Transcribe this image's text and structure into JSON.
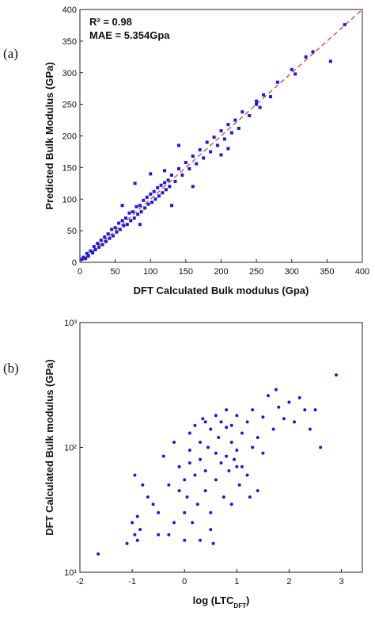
{
  "chart_data": [
    {
      "type": "scatter",
      "panel_label": "(a)",
      "xlabel": [
        "DFT Calculated Bulk modulus (Gpa)"
      ],
      "ylabel": "Predicted Bulk Modulus (GPa)",
      "annotations": [
        "R² = 0.98",
        "MAE = 5.354Gpa"
      ],
      "identity_line": true,
      "identity_color": "#e8453c",
      "marker": "square",
      "yscale": "linear",
      "xlim": [
        0,
        400
      ],
      "ylim": [
        0,
        400
      ],
      "xticks": [
        0,
        50,
        100,
        150,
        200,
        250,
        300,
        350,
        400
      ],
      "yticks": [
        0,
        50,
        100,
        150,
        200,
        250,
        300,
        350,
        400
      ],
      "series": [
        {
          "color": "#1a1ae6",
          "x": [
            3,
            5,
            8,
            10,
            12,
            15,
            18,
            20,
            22,
            25,
            27,
            30,
            32,
            35,
            37,
            40,
            42,
            45,
            47,
            50,
            52,
            55,
            57,
            60,
            62,
            65,
            67,
            70,
            72,
            75,
            77,
            80,
            82,
            85,
            87,
            90,
            92,
            95,
            97,
            100,
            102,
            105,
            107,
            110,
            112,
            115,
            117,
            120,
            122,
            125,
            127,
            130,
            135,
            140,
            145,
            150,
            155,
            160,
            165,
            170,
            175,
            180,
            185,
            190,
            195,
            200,
            205,
            210,
            215,
            220,
            225,
            230,
            240,
            250,
            255,
            260,
            270,
            280,
            300,
            305,
            320,
            330,
            355,
            375,
            78,
            130,
            100,
            160,
            140,
            200,
            250,
            210,
            120,
            60,
            85
          ],
          "y": [
            5,
            8,
            6,
            14,
            10,
            18,
            15,
            25,
            20,
            30,
            24,
            35,
            28,
            40,
            33,
            45,
            38,
            52,
            42,
            55,
            48,
            62,
            52,
            66,
            58,
            70,
            60,
            78,
            66,
            80,
            70,
            88,
            76,
            90,
            80,
            98,
            86,
            103,
            92,
            108,
            95,
            112,
            100,
            118,
            105,
            122,
            110,
            126,
            115,
            130,
            120,
            138,
            128,
            148,
            138,
            158,
            148,
            168,
            156,
            178,
            165,
            190,
            175,
            198,
            185,
            208,
            195,
            218,
            205,
            225,
            212,
            238,
            232,
            255,
            245,
            265,
            262,
            285,
            305,
            298,
            325,
            333,
            318,
            376,
            125,
            90,
            140,
            120,
            185,
            170,
            250,
            180,
            145,
            90,
            60
          ]
        }
      ]
    },
    {
      "type": "scatter",
      "panel_label": "(b)",
      "xlabel": [
        "log (LTC",
        "DFT",
        ")"
      ],
      "ylabel": "DFT Calculated Bulk modulus (GPa)",
      "marker": "circle",
      "yscale": "log",
      "xlim": [
        -2,
        3.4
      ],
      "ylim": [
        10,
        1000
      ],
      "xticks": [
        -2,
        -1,
        0,
        1,
        2,
        3
      ],
      "yticks": [
        {
          "value": 10,
          "label": "10¹"
        },
        {
          "value": 100,
          "label": "10²"
        },
        {
          "value": 1000,
          "label": "10³"
        }
      ],
      "series": [
        {
          "color": "#1a1ae6",
          "x": [
            -1.65,
            -1.1,
            -1.0,
            -0.95,
            -0.9,
            -0.85,
            -0.9,
            -0.95,
            -0.8,
            -0.7,
            -0.6,
            -0.5,
            -0.4,
            -0.3,
            -0.2,
            -0.3,
            -0.1,
            -0.1,
            0,
            0,
            0.05,
            0.1,
            0.1,
            0.15,
            0.2,
            0.2,
            0.25,
            0.3,
            0.3,
            0.35,
            0.4,
            0.4,
            0.45,
            0.5,
            0.5,
            0.55,
            0.6,
            0.6,
            0.65,
            0.7,
            0.7,
            0.75,
            0.8,
            0.8,
            0.85,
            0.9,
            0.9,
            0.95,
            1.0,
            1.0,
            1.05,
            1.1,
            1.1,
            1.2,
            1.25,
            1.3,
            1.4,
            1.5,
            1.5,
            1.6,
            1.7,
            1.75,
            1.8,
            1.9,
            2.0,
            2.1,
            2.2,
            2.3,
            2.4,
            2.5,
            2.6,
            2.9,
            0.9,
            0.3,
            -0.5,
            0.0,
            0.5,
            1.2,
            1.4,
            0.1,
            0.6,
            -0.2,
            0.8,
            1.0,
            0.4,
            1.3
          ],
          "y": [
            14,
            17,
            25,
            20,
            18,
            22,
            28,
            60,
            50,
            40,
            35,
            30,
            85,
            50,
            25,
            20,
            45,
            70,
            30,
            55,
            40,
            95,
            130,
            25,
            60,
            150,
            35,
            80,
            110,
            170,
            45,
            65,
            100,
            140,
            30,
            17,
            55,
            90,
            120,
            160,
            75,
            40,
            85,
            200,
            65,
            110,
            150,
            80,
            95,
            180,
            50,
            130,
            70,
            160,
            40,
            200,
            120,
            175,
            90,
            260,
            140,
            290,
            210,
            170,
            230,
            160,
            250,
            200,
            140,
            200,
            100,
            380,
            35,
            18,
            20,
            18,
            22,
            60,
            45,
            75,
            180,
            110,
            145,
            70,
            160,
            100
          ]
        }
      ]
    }
  ]
}
